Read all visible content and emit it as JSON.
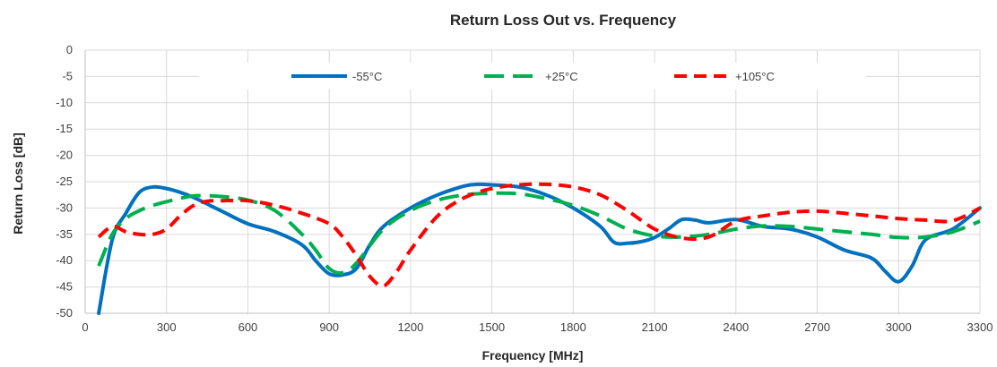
{
  "chart_data": {
    "type": "line",
    "title": "Return Loss Out vs. Frequency",
    "xlabel": "Frequency [MHz]",
    "ylabel": "Return Loss [dB]",
    "xlim": [
      0,
      3300
    ],
    "ylim": [
      -50,
      0
    ],
    "xticks": [
      0,
      300,
      600,
      900,
      1200,
      1500,
      1800,
      2100,
      2400,
      2700,
      3000,
      3300
    ],
    "yticks": [
      0,
      -5,
      -10,
      -15,
      -20,
      -25,
      -30,
      -35,
      -40,
      -45,
      -50
    ],
    "grid": true,
    "legend_position": "top",
    "series": [
      {
        "name": "-55°C",
        "color": "#0070C0",
        "dash": "solid",
        "points": [
          [
            50,
            -50
          ],
          [
            100,
            -36
          ],
          [
            150,
            -31
          ],
          [
            200,
            -27
          ],
          [
            250,
            -26
          ],
          [
            300,
            -26.3
          ],
          [
            350,
            -27
          ],
          [
            400,
            -28
          ],
          [
            500,
            -30.5
          ],
          [
            600,
            -33
          ],
          [
            700,
            -34.5
          ],
          [
            800,
            -37
          ],
          [
            850,
            -40
          ],
          [
            900,
            -42.5
          ],
          [
            950,
            -42.7
          ],
          [
            1000,
            -41.5
          ],
          [
            1050,
            -37
          ],
          [
            1100,
            -33.5
          ],
          [
            1200,
            -30
          ],
          [
            1300,
            -27.5
          ],
          [
            1400,
            -25.8
          ],
          [
            1450,
            -25.5
          ],
          [
            1500,
            -25.6
          ],
          [
            1600,
            -26
          ],
          [
            1700,
            -27.5
          ],
          [
            1800,
            -30
          ],
          [
            1900,
            -33.5
          ],
          [
            1950,
            -36.5
          ],
          [
            2000,
            -36.7
          ],
          [
            2050,
            -36.4
          ],
          [
            2100,
            -35.6
          ],
          [
            2150,
            -34
          ],
          [
            2200,
            -32.2
          ],
          [
            2250,
            -32.3
          ],
          [
            2300,
            -32.8
          ],
          [
            2400,
            -32.2
          ],
          [
            2500,
            -33.5
          ],
          [
            2600,
            -34
          ],
          [
            2700,
            -35.5
          ],
          [
            2800,
            -38
          ],
          [
            2900,
            -39.5
          ],
          [
            2950,
            -42
          ],
          [
            3000,
            -44
          ],
          [
            3050,
            -41
          ],
          [
            3100,
            -36
          ],
          [
            3200,
            -34
          ],
          [
            3300,
            -30
          ]
        ]
      },
      {
        "name": "+25°C",
        "color": "#00B050",
        "dash": "long-dash",
        "points": [
          [
            50,
            -41
          ],
          [
            100,
            -35
          ],
          [
            150,
            -32
          ],
          [
            200,
            -30.5
          ],
          [
            250,
            -29.5
          ],
          [
            300,
            -28.8
          ],
          [
            400,
            -27.7
          ],
          [
            500,
            -27.8
          ],
          [
            600,
            -28.5
          ],
          [
            700,
            -30.5
          ],
          [
            800,
            -35
          ],
          [
            850,
            -38
          ],
          [
            900,
            -41.5
          ],
          [
            950,
            -42.3
          ],
          [
            1000,
            -40.5
          ],
          [
            1100,
            -34
          ],
          [
            1200,
            -30.5
          ],
          [
            1300,
            -28.5
          ],
          [
            1400,
            -27.5
          ],
          [
            1500,
            -27.2
          ],
          [
            1600,
            -27.3
          ],
          [
            1700,
            -28.2
          ],
          [
            1800,
            -29.5
          ],
          [
            1900,
            -31.5
          ],
          [
            2000,
            -34
          ],
          [
            2100,
            -35.3
          ],
          [
            2200,
            -35.5
          ],
          [
            2300,
            -35
          ],
          [
            2400,
            -34
          ],
          [
            2500,
            -33.4
          ],
          [
            2600,
            -33.5
          ],
          [
            2700,
            -34
          ],
          [
            2800,
            -34.5
          ],
          [
            2900,
            -35
          ],
          [
            3000,
            -35.6
          ],
          [
            3100,
            -35.5
          ],
          [
            3200,
            -34.5
          ],
          [
            3300,
            -32.5
          ]
        ]
      },
      {
        "name": "+105°C",
        "color": "#FF0000",
        "dash": "short-dash",
        "points": [
          [
            50,
            -35.5
          ],
          [
            100,
            -33.5
          ],
          [
            150,
            -34.5
          ],
          [
            200,
            -35
          ],
          [
            250,
            -35
          ],
          [
            300,
            -34
          ],
          [
            350,
            -31.5
          ],
          [
            400,
            -29.5
          ],
          [
            450,
            -28.7
          ],
          [
            500,
            -28.6
          ],
          [
            600,
            -28.6
          ],
          [
            700,
            -29.5
          ],
          [
            800,
            -31
          ],
          [
            900,
            -33
          ],
          [
            950,
            -35.5
          ],
          [
            1000,
            -39
          ],
          [
            1050,
            -43
          ],
          [
            1100,
            -44.8
          ],
          [
            1150,
            -42
          ],
          [
            1200,
            -38
          ],
          [
            1300,
            -31.5
          ],
          [
            1400,
            -28
          ],
          [
            1500,
            -26.3
          ],
          [
            1600,
            -25.6
          ],
          [
            1700,
            -25.5
          ],
          [
            1800,
            -26
          ],
          [
            1900,
            -27.5
          ],
          [
            2000,
            -30.5
          ],
          [
            2100,
            -34
          ],
          [
            2200,
            -35.7
          ],
          [
            2300,
            -35.5
          ],
          [
            2400,
            -32.5
          ],
          [
            2500,
            -31.5
          ],
          [
            2600,
            -30.8
          ],
          [
            2700,
            -30.6
          ],
          [
            2800,
            -31
          ],
          [
            2900,
            -31.5
          ],
          [
            3000,
            -32
          ],
          [
            3100,
            -32.3
          ],
          [
            3200,
            -32.4
          ],
          [
            3300,
            -30
          ]
        ]
      }
    ]
  }
}
